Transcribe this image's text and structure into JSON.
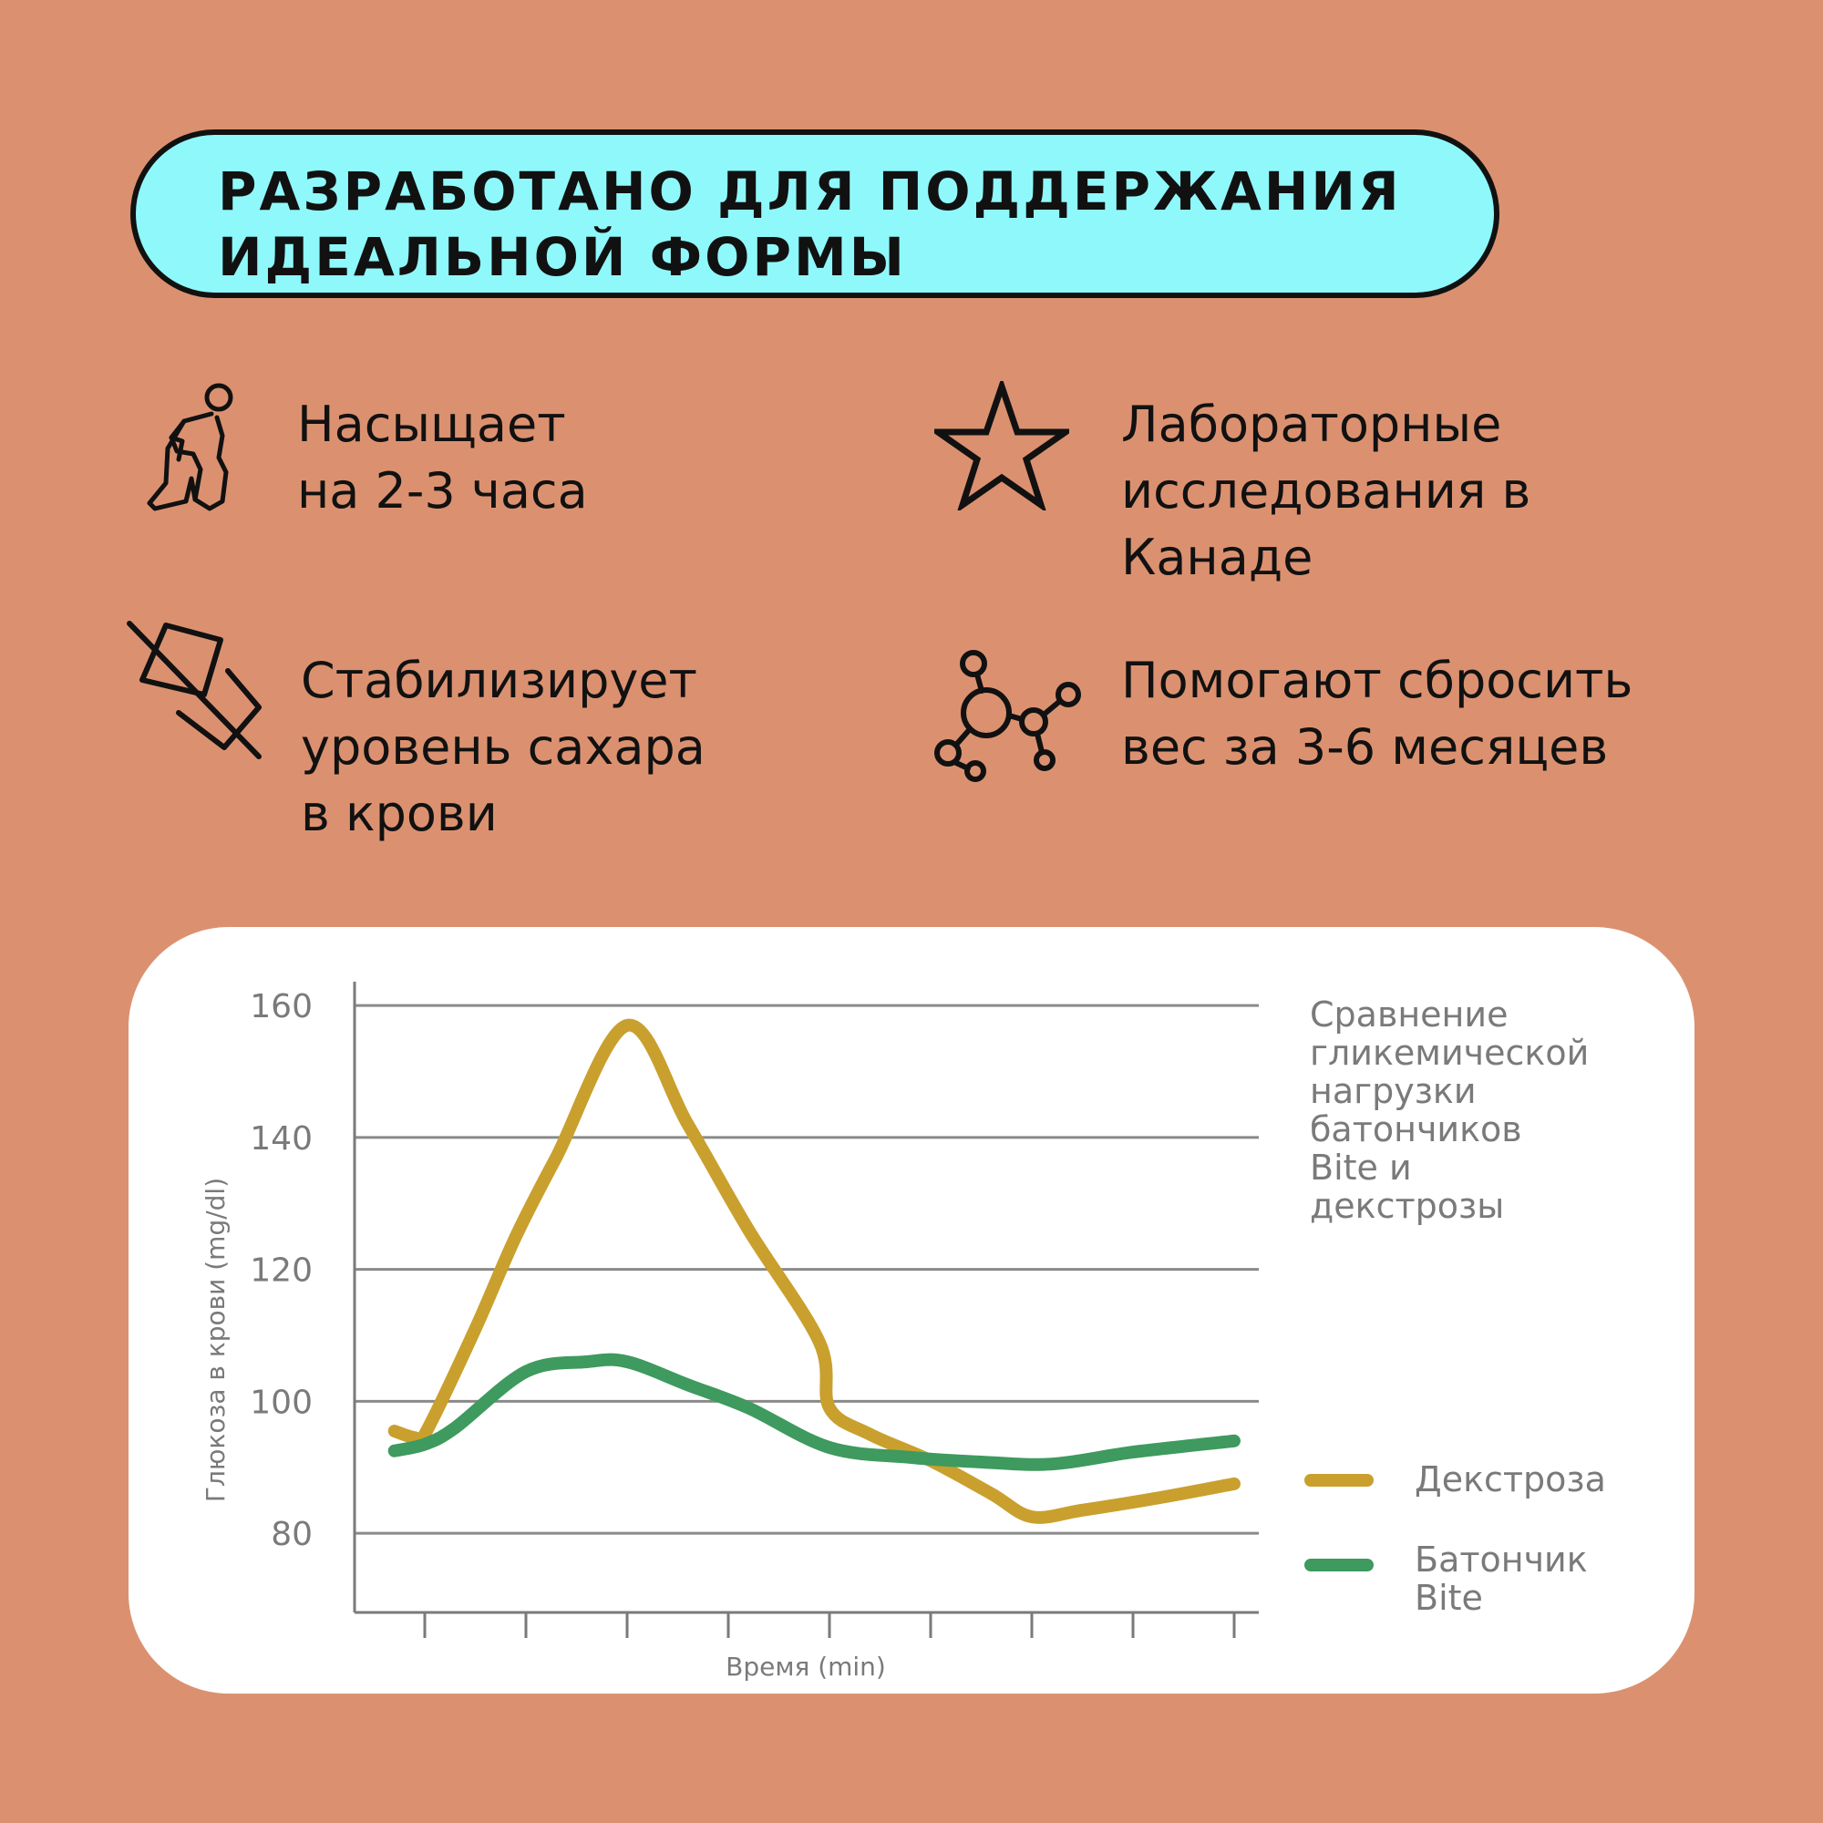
{
  "banner": {
    "line1": "РАЗРАБОТАНО ДЛЯ ПОДДЕРЖАНИЯ",
    "line2": "ИДЕАЛЬНОЙ ФОРМЫ",
    "bg_color": "#8FF8FB"
  },
  "features": [
    {
      "icon": "lunge-exercise-icon",
      "lines": [
        "Насыщает",
        "на 2-3 часа"
      ]
    },
    {
      "icon": "star-icon",
      "lines": [
        "Лабораторные",
        "исследования в",
        "Канаде"
      ]
    },
    {
      "icon": "no-sugar-cube-icon",
      "lines": [
        "Стабилизирует",
        "уровень сахара",
        "в крови"
      ]
    },
    {
      "icon": "molecule-icon",
      "lines": [
        "Помогают сбросить",
        "вес за 3-6 месяцев"
      ]
    }
  ],
  "chart_data": {
    "type": "line",
    "description_lines": [
      "Сравнение",
      "гликемической",
      "нагрузки",
      "батончиков",
      "Bite и",
      "декстрозы"
    ],
    "xlabel": "Время (min)",
    "ylabel": "Глюкоза в крови (mg/dl)",
    "yticks": [
      80,
      100,
      120,
      140,
      160
    ],
    "ylim": [
      68,
      165
    ],
    "xlim": [
      -0.7,
      8.3
    ],
    "x_tick_positions": [
      0,
      1,
      2,
      3,
      4,
      5,
      6,
      7,
      8
    ],
    "grid": true,
    "legend_position": "right",
    "series": [
      {
        "name": "Декстроза",
        "color": "#C9A02E",
        "points": [
          [
            -0.3,
            95.5
          ],
          [
            -0.1,
            94.5
          ],
          [
            0,
            95
          ],
          [
            0.5,
            111
          ],
          [
            0.9,
            125
          ],
          [
            1.3,
            137
          ],
          [
            2,
            157
          ],
          [
            2.6,
            142
          ],
          [
            3.2,
            126
          ],
          [
            3.9,
            109
          ],
          [
            4,
            99
          ],
          [
            4.4,
            95
          ],
          [
            5,
            91
          ],
          [
            5.6,
            86
          ],
          [
            6,
            82.5
          ],
          [
            6.5,
            83.5
          ],
          [
            7.3,
            85.5
          ],
          [
            8,
            87.5
          ]
        ]
      },
      {
        "name": "Батончик Bite",
        "color": "#3E9A5E",
        "points": [
          [
            -0.3,
            92.5
          ],
          [
            0,
            93.5
          ],
          [
            0.3,
            96
          ],
          [
            1,
            104.5
          ],
          [
            1.6,
            106
          ],
          [
            2,
            106
          ],
          [
            2.6,
            102.5
          ],
          [
            3.2,
            99
          ],
          [
            4,
            93
          ],
          [
            4.8,
            91.5
          ],
          [
            5.5,
            90.8
          ],
          [
            6.2,
            90.5
          ],
          [
            7,
            92.3
          ],
          [
            8,
            94
          ]
        ]
      }
    ]
  }
}
